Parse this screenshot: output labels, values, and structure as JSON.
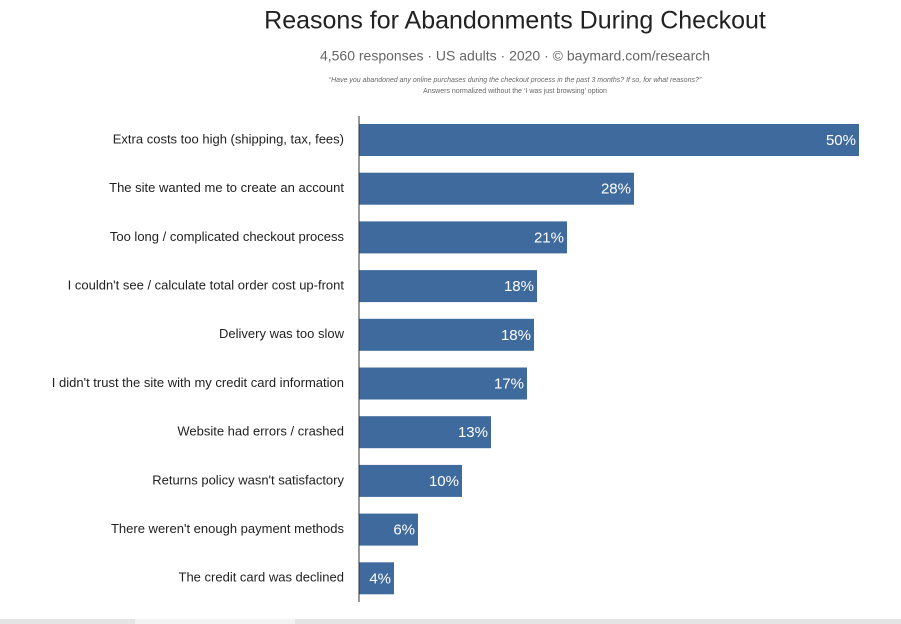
{
  "chart_data": {
    "type": "bar",
    "orientation": "horizontal",
    "title": "Reasons for Abandonments During Checkout",
    "subtitle": "4,560 responses · US adults · 2020 · © baymard.com/research",
    "notes": [
      "“Have you abandoned any online purchases during the checkout process in the past 3 months? If so, for what reasons?”",
      "Answers normalized without the ‘I was just browsing’ option"
    ],
    "categories": [
      "Extra costs too high (shipping, tax, fees)",
      "The site wanted me to create an account",
      "Too long / complicated checkout process",
      "I couldn't see / calculate total order cost up-front",
      "Delivery was too slow",
      "I didn't trust the site with my credit card information",
      "Website had errors / crashed",
      "Returns policy wasn't satisfactory",
      "There weren't enough payment methods",
      "The credit card was declined"
    ],
    "values": [
      50,
      27.5,
      20.8,
      17.8,
      17.5,
      16.8,
      13.2,
      10.3,
      5.9,
      3.5
    ],
    "value_labels": [
      "50%",
      "28%",
      "21%",
      "18%",
      "18%",
      "17%",
      "13%",
      "10%",
      "6%",
      "4%"
    ],
    "color": "#3f6a9e",
    "xlim": [
      0,
      50
    ]
  }
}
